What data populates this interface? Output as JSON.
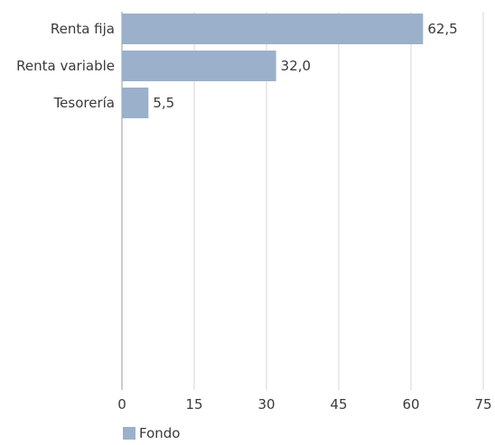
{
  "chart_data": {
    "type": "bar",
    "orientation": "horizontal",
    "categories": [
      "Renta fija",
      "Renta variable",
      "Tesorería"
    ],
    "series": [
      {
        "name": "Fondo",
        "values": [
          62.5,
          32.0,
          5.5
        ],
        "data_labels": [
          "62,5",
          "32,0",
          "5,5"
        ],
        "color": "#9bb0ca"
      }
    ],
    "x_ticks": [
      "0",
      "15",
      "30",
      "45",
      "60",
      "75"
    ],
    "xlim": [
      0,
      75
    ],
    "grid": "vertical",
    "legend_position": "bottom-left"
  },
  "colors": {
    "bar": "#9bb0ca",
    "grid": "#d4d4d4",
    "axis": "#9a9a9a",
    "text": "#3a3a3a"
  }
}
